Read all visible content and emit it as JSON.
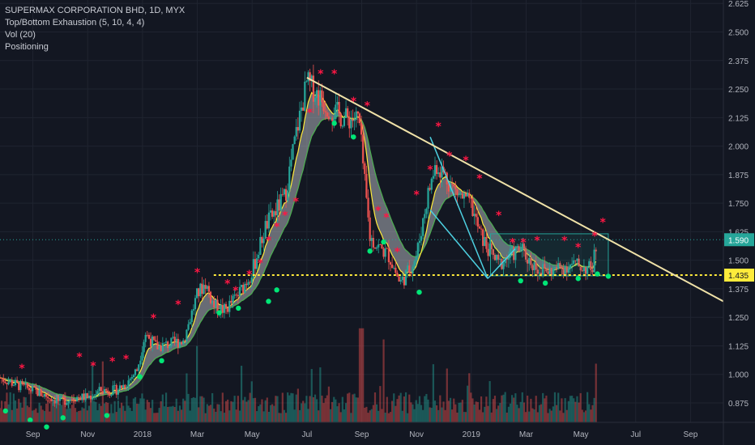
{
  "legend": {
    "symbol": "SUPERMAX CORPORATION BHD, 1D, MYX",
    "indicator1": "Top/Bottom Exhaustion (5, 10, 4, 4)",
    "indicator2": "Vol (20)",
    "indicator3": "Positioning"
  },
  "colors": {
    "background": "#131722",
    "grid": "#1f2430",
    "up": "#26a69a",
    "down": "#ef5350",
    "trendline": "#f0e2a8",
    "channel": "#4dd0e1",
    "box": "#26a69a",
    "support": "#ffeb3b",
    "ma_fast": "#ffeb3b",
    "ma_slow": "#4caf50",
    "top_marker": "#ff1744",
    "bottom_marker": "#00e676",
    "price_label": "#26a69a"
  },
  "chart_data": {
    "type": "candlestick",
    "y_ticks": [
      "2.625",
      "2.500",
      "2.375",
      "2.250",
      "2.125",
      "2.000",
      "1.875",
      "1.750",
      "1.625",
      "1.500",
      "1.375",
      "1.250",
      "1.125",
      "1.000",
      "0.875"
    ],
    "ylim": [
      0.79,
      2.64
    ],
    "x_ticks": [
      "Sep",
      "Nov",
      "2018",
      "Mar",
      "May",
      "Jul",
      "Sep",
      "Nov",
      "2019",
      "Mar",
      "May",
      "Jul",
      "Sep"
    ],
    "x_tick_months": [
      0,
      2,
      4,
      6,
      8,
      10,
      12,
      14,
      16,
      18,
      20,
      22,
      24
    ],
    "xlim_months": [
      -1.2,
      25.2
    ],
    "last_price": "1.590",
    "last_price_value": 1.59,
    "support_price": "1.435",
    "support_price_value": 1.435,
    "price_path": [
      [
        -1.2,
        0.985
      ],
      [
        -0.5,
        0.95
      ],
      [
        0.0,
        0.93
      ],
      [
        0.5,
        0.905
      ],
      [
        1.0,
        0.88
      ],
      [
        1.5,
        0.9
      ],
      [
        2.0,
        0.9
      ],
      [
        2.5,
        0.93
      ],
      [
        3.0,
        0.93
      ],
      [
        3.4,
        0.96
      ],
      [
        3.8,
        1.02
      ],
      [
        4.1,
        1.18
      ],
      [
        4.5,
        1.12
      ],
      [
        4.9,
        1.13
      ],
      [
        5.5,
        1.15
      ],
      [
        6.0,
        1.35
      ],
      [
        6.3,
        1.4
      ],
      [
        6.6,
        1.3
      ],
      [
        7.0,
        1.28
      ],
      [
        7.5,
        1.35
      ],
      [
        8.0,
        1.45
      ],
      [
        8.5,
        1.65
      ],
      [
        9.2,
        1.78
      ],
      [
        9.6,
        2.05
      ],
      [
        10.0,
        2.28
      ],
      [
        10.3,
        2.24
      ],
      [
        10.7,
        2.18
      ],
      [
        11.0,
        2.15
      ],
      [
        11.4,
        2.12
      ],
      [
        11.9,
        2.12
      ],
      [
        12.1,
        1.85
      ],
      [
        12.3,
        1.6
      ],
      [
        12.6,
        1.56
      ],
      [
        13.0,
        1.52
      ],
      [
        13.4,
        1.4
      ],
      [
        13.7,
        1.45
      ],
      [
        14.0,
        1.52
      ],
      [
        14.4,
        1.78
      ],
      [
        14.7,
        1.92
      ],
      [
        15.0,
        1.88
      ],
      [
        15.3,
        1.82
      ],
      [
        15.6,
        1.78
      ],
      [
        16.0,
        1.74
      ],
      [
        16.3,
        1.62
      ],
      [
        16.6,
        1.55
      ],
      [
        17.0,
        1.48
      ],
      [
        17.4,
        1.52
      ],
      [
        17.8,
        1.55
      ],
      [
        18.1,
        1.5
      ],
      [
        18.5,
        1.46
      ],
      [
        18.9,
        1.45
      ],
      [
        19.3,
        1.47
      ],
      [
        19.7,
        1.48
      ],
      [
        20.1,
        1.47
      ],
      [
        20.4,
        1.46
      ],
      [
        20.6,
        1.59
      ]
    ],
    "trendline": [
      [
        10.0,
        2.3
      ],
      [
        25.2,
        1.32
      ]
    ],
    "channel_lines": [
      [
        [
          14.5,
          2.04
        ],
        [
          16.6,
          1.42
        ]
      ],
      [
        [
          14.5,
          1.72
        ],
        [
          16.6,
          1.42
        ]
      ],
      [
        [
          16.6,
          1.42
        ],
        [
          17.6,
          1.55
        ]
      ]
    ],
    "consolidation_box": {
      "x0": 16.7,
      "x1": 21.0,
      "y0": 1.432,
      "y1": 1.616
    },
    "support_line": {
      "x0": 6.6,
      "x1": 25.2,
      "value": 1.435
    },
    "top_markers": [
      [
        -0.4,
        1.01
      ],
      [
        1.7,
        1.06
      ],
      [
        2.2,
        1.02
      ],
      [
        2.9,
        1.04
      ],
      [
        3.4,
        1.05
      ],
      [
        4.4,
        1.23
      ],
      [
        5.3,
        1.29
      ],
      [
        6.0,
        1.43
      ],
      [
        7.1,
        1.38
      ],
      [
        7.4,
        1.35
      ],
      [
        7.9,
        1.42
      ],
      [
        8.3,
        1.47
      ],
      [
        8.6,
        1.57
      ],
      [
        8.9,
        1.63
      ],
      [
        9.2,
        1.68
      ],
      [
        9.6,
        1.74
      ],
      [
        10.1,
        2.13
      ],
      [
        10.5,
        2.3
      ],
      [
        11.0,
        2.3
      ],
      [
        11.7,
        2.18
      ],
      [
        12.2,
        2.16
      ],
      [
        12.6,
        1.7
      ],
      [
        12.9,
        1.67
      ],
      [
        13.3,
        1.52
      ],
      [
        14.0,
        1.77
      ],
      [
        14.5,
        1.88
      ],
      [
        14.8,
        2.07
      ],
      [
        15.2,
        1.94
      ],
      [
        15.8,
        1.92
      ],
      [
        16.3,
        1.84
      ],
      [
        17.0,
        1.68
      ],
      [
        17.5,
        1.56
      ],
      [
        17.9,
        1.56
      ],
      [
        18.4,
        1.57
      ],
      [
        19.4,
        1.57
      ],
      [
        19.9,
        1.54
      ],
      [
        20.5,
        1.59
      ],
      [
        20.8,
        1.65
      ]
    ],
    "bottom_markers": [
      [
        -1.0,
        0.84
      ],
      [
        -0.1,
        0.8
      ],
      [
        0.5,
        0.77
      ],
      [
        1.1,
        0.81
      ],
      [
        2.7,
        0.82
      ],
      [
        3.9,
        0.99
      ],
      [
        4.7,
        1.06
      ],
      [
        6.8,
        1.27
      ],
      [
        7.5,
        1.29
      ],
      [
        8.6,
        1.32
      ],
      [
        8.9,
        1.37
      ],
      [
        11.0,
        2.1
      ],
      [
        11.7,
        2.04
      ],
      [
        12.3,
        1.54
      ],
      [
        12.8,
        1.58
      ],
      [
        14.1,
        1.36
      ],
      [
        17.8,
        1.41
      ],
      [
        18.7,
        1.4
      ],
      [
        19.9,
        1.42
      ],
      [
        20.6,
        1.44
      ],
      [
        21.0,
        1.43
      ]
    ]
  }
}
